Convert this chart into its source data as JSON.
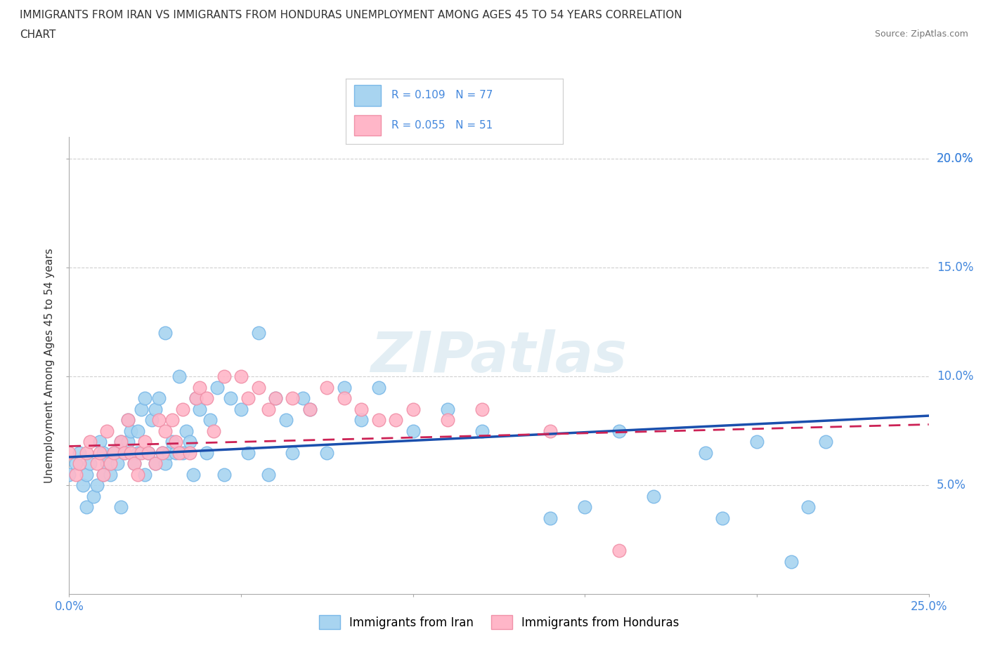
{
  "title_line1": "IMMIGRANTS FROM IRAN VS IMMIGRANTS FROM HONDURAS UNEMPLOYMENT AMONG AGES 45 TO 54 YEARS CORRELATION",
  "title_line2": "CHART",
  "source_text": "Source: ZipAtlas.com",
  "ylabel": "Unemployment Among Ages 45 to 54 years",
  "xlim": [
    0.0,
    0.25
  ],
  "ylim": [
    0.0,
    0.21
  ],
  "xticks": [
    0.0,
    0.05,
    0.1,
    0.15,
    0.2,
    0.25
  ],
  "xticklabels": [
    "0.0%",
    "",
    "",
    "",
    "",
    "25.0%"
  ],
  "yticks": [
    0.05,
    0.1,
    0.15,
    0.2
  ],
  "yticklabels": [
    "5.0%",
    "10.0%",
    "15.0%",
    "20.0%"
  ],
  "iran_color": "#a8d4f0",
  "iran_edge": "#7ab8e8",
  "honduras_color": "#ffb6c8",
  "honduras_edge": "#f090a8",
  "iran_R": 0.109,
  "iran_N": 77,
  "honduras_R": 0.055,
  "honduras_N": 51,
  "iran_trend_start": 0.063,
  "iran_trend_end": 0.082,
  "honduras_trend_start": 0.068,
  "honduras_trend_end": 0.078,
  "iran_scatter_x": [
    0.0,
    0.002,
    0.003,
    0.004,
    0.005,
    0.005,
    0.006,
    0.007,
    0.008,
    0.009,
    0.01,
    0.01,
    0.011,
    0.012,
    0.013,
    0.014,
    0.015,
    0.015,
    0.016,
    0.017,
    0.017,
    0.018,
    0.019,
    0.02,
    0.02,
    0.021,
    0.022,
    0.022,
    0.023,
    0.024,
    0.025,
    0.025,
    0.026,
    0.027,
    0.028,
    0.028,
    0.029,
    0.03,
    0.031,
    0.032,
    0.033,
    0.034,
    0.035,
    0.036,
    0.037,
    0.038,
    0.04,
    0.041,
    0.043,
    0.045,
    0.047,
    0.05,
    0.052,
    0.055,
    0.058,
    0.06,
    0.063,
    0.065,
    0.068,
    0.07,
    0.075,
    0.08,
    0.085,
    0.09,
    0.1,
    0.11,
    0.12,
    0.14,
    0.15,
    0.16,
    0.17,
    0.185,
    0.19,
    0.2,
    0.21,
    0.215,
    0.22
  ],
  "iran_scatter_y": [
    0.055,
    0.06,
    0.065,
    0.05,
    0.04,
    0.055,
    0.06,
    0.045,
    0.05,
    0.07,
    0.055,
    0.065,
    0.06,
    0.055,
    0.065,
    0.06,
    0.04,
    0.07,
    0.065,
    0.07,
    0.08,
    0.075,
    0.06,
    0.065,
    0.075,
    0.085,
    0.09,
    0.055,
    0.065,
    0.08,
    0.06,
    0.085,
    0.09,
    0.065,
    0.06,
    0.12,
    0.065,
    0.07,
    0.065,
    0.1,
    0.065,
    0.075,
    0.07,
    0.055,
    0.09,
    0.085,
    0.065,
    0.08,
    0.095,
    0.055,
    0.09,
    0.085,
    0.065,
    0.12,
    0.055,
    0.09,
    0.08,
    0.065,
    0.09,
    0.085,
    0.065,
    0.095,
    0.08,
    0.095,
    0.075,
    0.085,
    0.075,
    0.035,
    0.04,
    0.075,
    0.045,
    0.065,
    0.035,
    0.07,
    0.015,
    0.04,
    0.07
  ],
  "honduras_scatter_x": [
    0.0,
    0.002,
    0.003,
    0.005,
    0.006,
    0.008,
    0.009,
    0.01,
    0.011,
    0.012,
    0.013,
    0.015,
    0.016,
    0.017,
    0.018,
    0.019,
    0.02,
    0.021,
    0.022,
    0.023,
    0.025,
    0.026,
    0.027,
    0.028,
    0.03,
    0.031,
    0.032,
    0.033,
    0.035,
    0.037,
    0.038,
    0.04,
    0.042,
    0.045,
    0.05,
    0.052,
    0.055,
    0.058,
    0.06,
    0.065,
    0.07,
    0.075,
    0.08,
    0.085,
    0.09,
    0.095,
    0.1,
    0.11,
    0.12,
    0.14,
    0.16
  ],
  "honduras_scatter_y": [
    0.065,
    0.055,
    0.06,
    0.065,
    0.07,
    0.06,
    0.065,
    0.055,
    0.075,
    0.06,
    0.065,
    0.07,
    0.065,
    0.08,
    0.065,
    0.06,
    0.055,
    0.065,
    0.07,
    0.065,
    0.06,
    0.08,
    0.065,
    0.075,
    0.08,
    0.07,
    0.065,
    0.085,
    0.065,
    0.09,
    0.095,
    0.09,
    0.075,
    0.1,
    0.1,
    0.09,
    0.095,
    0.085,
    0.09,
    0.09,
    0.085,
    0.095,
    0.09,
    0.085,
    0.08,
    0.08,
    0.085,
    0.08,
    0.085,
    0.075,
    0.02
  ],
  "watermark_text": "ZIPatlas",
  "background_color": "#ffffff",
  "grid_color": "#d0d0d0",
  "text_color": "#333333",
  "blue_text_color": "#4488dd",
  "trend_iran_color": "#1a4fad",
  "trend_hond_color": "#cc2255",
  "legend_iran_label": "Immigrants from Iran",
  "legend_honduras_label": "Immigrants from Honduras"
}
